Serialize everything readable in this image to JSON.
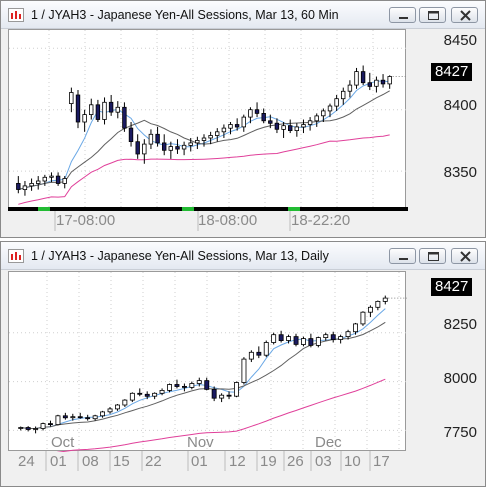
{
  "window_top": {
    "title": "1 / JYAH3 - Japanese Yen-All Sessions, Mar 13, 60 Min",
    "last_price": "8427",
    "y_ticks": [
      "8450",
      "8400",
      "8350"
    ],
    "x_labels": [
      "17-08:00",
      "18-08:00",
      "18-22:20"
    ]
  },
  "window_bottom": {
    "title": "1 / JYAH3 - Japanese Yen-All Sessions, Mar 13, Daily",
    "last_price": "8427",
    "y_ticks": [
      "8250",
      "8000",
      "7750"
    ],
    "month_labels": [
      "Oct",
      "Nov",
      "Dec"
    ],
    "day_labels": [
      "24",
      "01",
      "08",
      "15",
      "22",
      "01",
      "12",
      "19",
      "26",
      "03",
      "10",
      "17"
    ]
  },
  "controls": {
    "minimize_icon": "minimize-icon",
    "maximize_icon": "maximize-icon",
    "close_icon": "close-icon"
  },
  "colors": {
    "up": "#ffffff",
    "down": "#1a1a60",
    "fast_ma": "#6aa8e6",
    "mid_ma": "#606060",
    "slow_ma": "#e0409a",
    "session_green": "#22bb33"
  },
  "chart_data": [
    {
      "type": "candlestick",
      "title": "1 / JYAH3 - Japanese Yen-All Sessions, Mar 13, 60 Min",
      "ylim": [
        8320,
        8460
      ],
      "y_ticks": [
        8350,
        8400,
        8450
      ],
      "last": 8427,
      "ohlc": [
        [
          8340,
          8346,
          8332,
          8335
        ],
        [
          8335,
          8342,
          8330,
          8338
        ],
        [
          8338,
          8344,
          8334,
          8340
        ],
        [
          8340,
          8346,
          8335,
          8342
        ],
        [
          8342,
          8347,
          8338,
          8345
        ],
        [
          8345,
          8349,
          8341,
          8346
        ],
        [
          8346,
          8349,
          8338,
          8340
        ],
        [
          8340,
          8346,
          8336,
          8344
        ],
        [
          8405,
          8418,
          8398,
          8414
        ],
        [
          8412,
          8416,
          8385,
          8390
        ],
        [
          8390,
          8400,
          8382,
          8396
        ],
        [
          8396,
          8409,
          8392,
          8404
        ],
        [
          8404,
          8408,
          8390,
          8392
        ],
        [
          8392,
          8410,
          8388,
          8406
        ],
        [
          8406,
          8412,
          8395,
          8398
        ],
        [
          8398,
          8407,
          8393,
          8402
        ],
        [
          8402,
          8406,
          8382,
          8385
        ],
        [
          8385,
          8390,
          8370,
          8374
        ],
        [
          8374,
          8380,
          8360,
          8364
        ],
        [
          8364,
          8376,
          8356,
          8372
        ],
        [
          8372,
          8384,
          8368,
          8380
        ],
        [
          8380,
          8386,
          8370,
          8373
        ],
        [
          8373,
          8380,
          8363,
          8367
        ],
        [
          8367,
          8374,
          8360,
          8370
        ],
        [
          8370,
          8376,
          8364,
          8368
        ],
        [
          8368,
          8374,
          8363,
          8371
        ],
        [
          8371,
          8377,
          8366,
          8373
        ],
        [
          8373,
          8378,
          8368,
          8375
        ],
        [
          8375,
          8380,
          8370,
          8377
        ],
        [
          8377,
          8382,
          8372,
          8379
        ],
        [
          8379,
          8385,
          8374,
          8382
        ],
        [
          8382,
          8388,
          8377,
          8385
        ],
        [
          8385,
          8390,
          8380,
          8388
        ],
        [
          8388,
          8393,
          8383,
          8386
        ],
        [
          8386,
          8396,
          8382,
          8394
        ],
        [
          8394,
          8402,
          8389,
          8400
        ],
        [
          8400,
          8406,
          8394,
          8397
        ],
        [
          8397,
          8401,
          8389,
          8391
        ],
        [
          8391,
          8396,
          8385,
          8389
        ],
        [
          8389,
          8393,
          8381,
          8384
        ],
        [
          8384,
          8390,
          8377,
          8387
        ],
        [
          8387,
          8392,
          8381,
          8383
        ],
        [
          8383,
          8389,
          8378,
          8386
        ],
        [
          8386,
          8392,
          8381,
          8388
        ],
        [
          8388,
          8394,
          8383,
          8391
        ],
        [
          8391,
          8397,
          8386,
          8395
        ],
        [
          8395,
          8401,
          8390,
          8399
        ],
        [
          8399,
          8405,
          8394,
          8403
        ],
        [
          8403,
          8412,
          8399,
          8409
        ],
        [
          8409,
          8418,
          8404,
          8415
        ],
        [
          8415,
          8424,
          8410,
          8420
        ],
        [
          8420,
          8434,
          8417,
          8431
        ],
        [
          8431,
          8436,
          8420,
          8422
        ],
        [
          8422,
          8430,
          8416,
          8419
        ],
        [
          8419,
          8427,
          8414,
          8424
        ],
        [
          8424,
          8429,
          8418,
          8421
        ],
        [
          8421,
          8428,
          8417,
          8427
        ]
      ]
    },
    {
      "type": "candlestick",
      "title": "1 / JYAH3 - Japanese Yen-All Sessions, Mar 13, Daily",
      "ylim": [
        7660,
        8530
      ],
      "y_ticks": [
        7750,
        8000,
        8250
      ],
      "last": 8427,
      "ohlc": [
        [
          7760,
          7770,
          7750,
          7765
        ],
        [
          7765,
          7772,
          7745,
          7755
        ],
        [
          7755,
          7770,
          7735,
          7760
        ],
        [
          7760,
          7790,
          7750,
          7785
        ],
        [
          7785,
          7800,
          7770,
          7780
        ],
        [
          7780,
          7830,
          7775,
          7825
        ],
        [
          7825,
          7840,
          7805,
          7815
        ],
        [
          7815,
          7835,
          7800,
          7820
        ],
        [
          7820,
          7840,
          7810,
          7815
        ],
        [
          7815,
          7830,
          7800,
          7810
        ],
        [
          7810,
          7830,
          7800,
          7825
        ],
        [
          7825,
          7850,
          7815,
          7845
        ],
        [
          7845,
          7870,
          7835,
          7860
        ],
        [
          7860,
          7885,
          7850,
          7880
        ],
        [
          7880,
          7910,
          7870,
          7905
        ],
        [
          7905,
          7945,
          7895,
          7940
        ],
        [
          7940,
          7965,
          7925,
          7935
        ],
        [
          7935,
          7950,
          7910,
          7925
        ],
        [
          7925,
          7945,
          7910,
          7940
        ],
        [
          7940,
          7965,
          7930,
          7955
        ],
        [
          7955,
          7990,
          7945,
          7985
        ],
        [
          7985,
          8010,
          7965,
          7975
        ],
        [
          7975,
          7990,
          7950,
          7970
        ],
        [
          7970,
          8000,
          7960,
          7990
        ],
        [
          7990,
          8020,
          7975,
          8005
        ],
        [
          8005,
          8020,
          7955,
          7960
        ],
        [
          7960,
          7975,
          7900,
          7915
        ],
        [
          7915,
          7940,
          7895,
          7930
        ],
        [
          7930,
          7950,
          7910,
          7925
        ],
        [
          7925,
          8000,
          7920,
          7995
        ],
        [
          7995,
          8125,
          7985,
          8115
        ],
        [
          8115,
          8160,
          8100,
          8150
        ],
        [
          8150,
          8180,
          8120,
          8135
        ],
        [
          8135,
          8210,
          8125,
          8200
        ],
        [
          8200,
          8250,
          8190,
          8240
        ],
        [
          8240,
          8260,
          8200,
          8210
        ],
        [
          8210,
          8240,
          8195,
          8230
        ],
        [
          8230,
          8245,
          8180,
          8190
        ],
        [
          8190,
          8230,
          8180,
          8220
        ],
        [
          8220,
          8245,
          8175,
          8185
        ],
        [
          8185,
          8230,
          8175,
          8225
        ],
        [
          8225,
          8250,
          8210,
          8240
        ],
        [
          8240,
          8255,
          8200,
          8215
        ],
        [
          8215,
          8240,
          8195,
          8230
        ],
        [
          8230,
          8265,
          8215,
          8255
        ],
        [
          8255,
          8300,
          8240,
          8295
        ],
        [
          8295,
          8360,
          8285,
          8355
        ],
        [
          8355,
          8390,
          8330,
          8380
        ],
        [
          8380,
          8415,
          8365,
          8410
        ],
        [
          8410,
          8440,
          8395,
          8427
        ]
      ]
    }
  ]
}
